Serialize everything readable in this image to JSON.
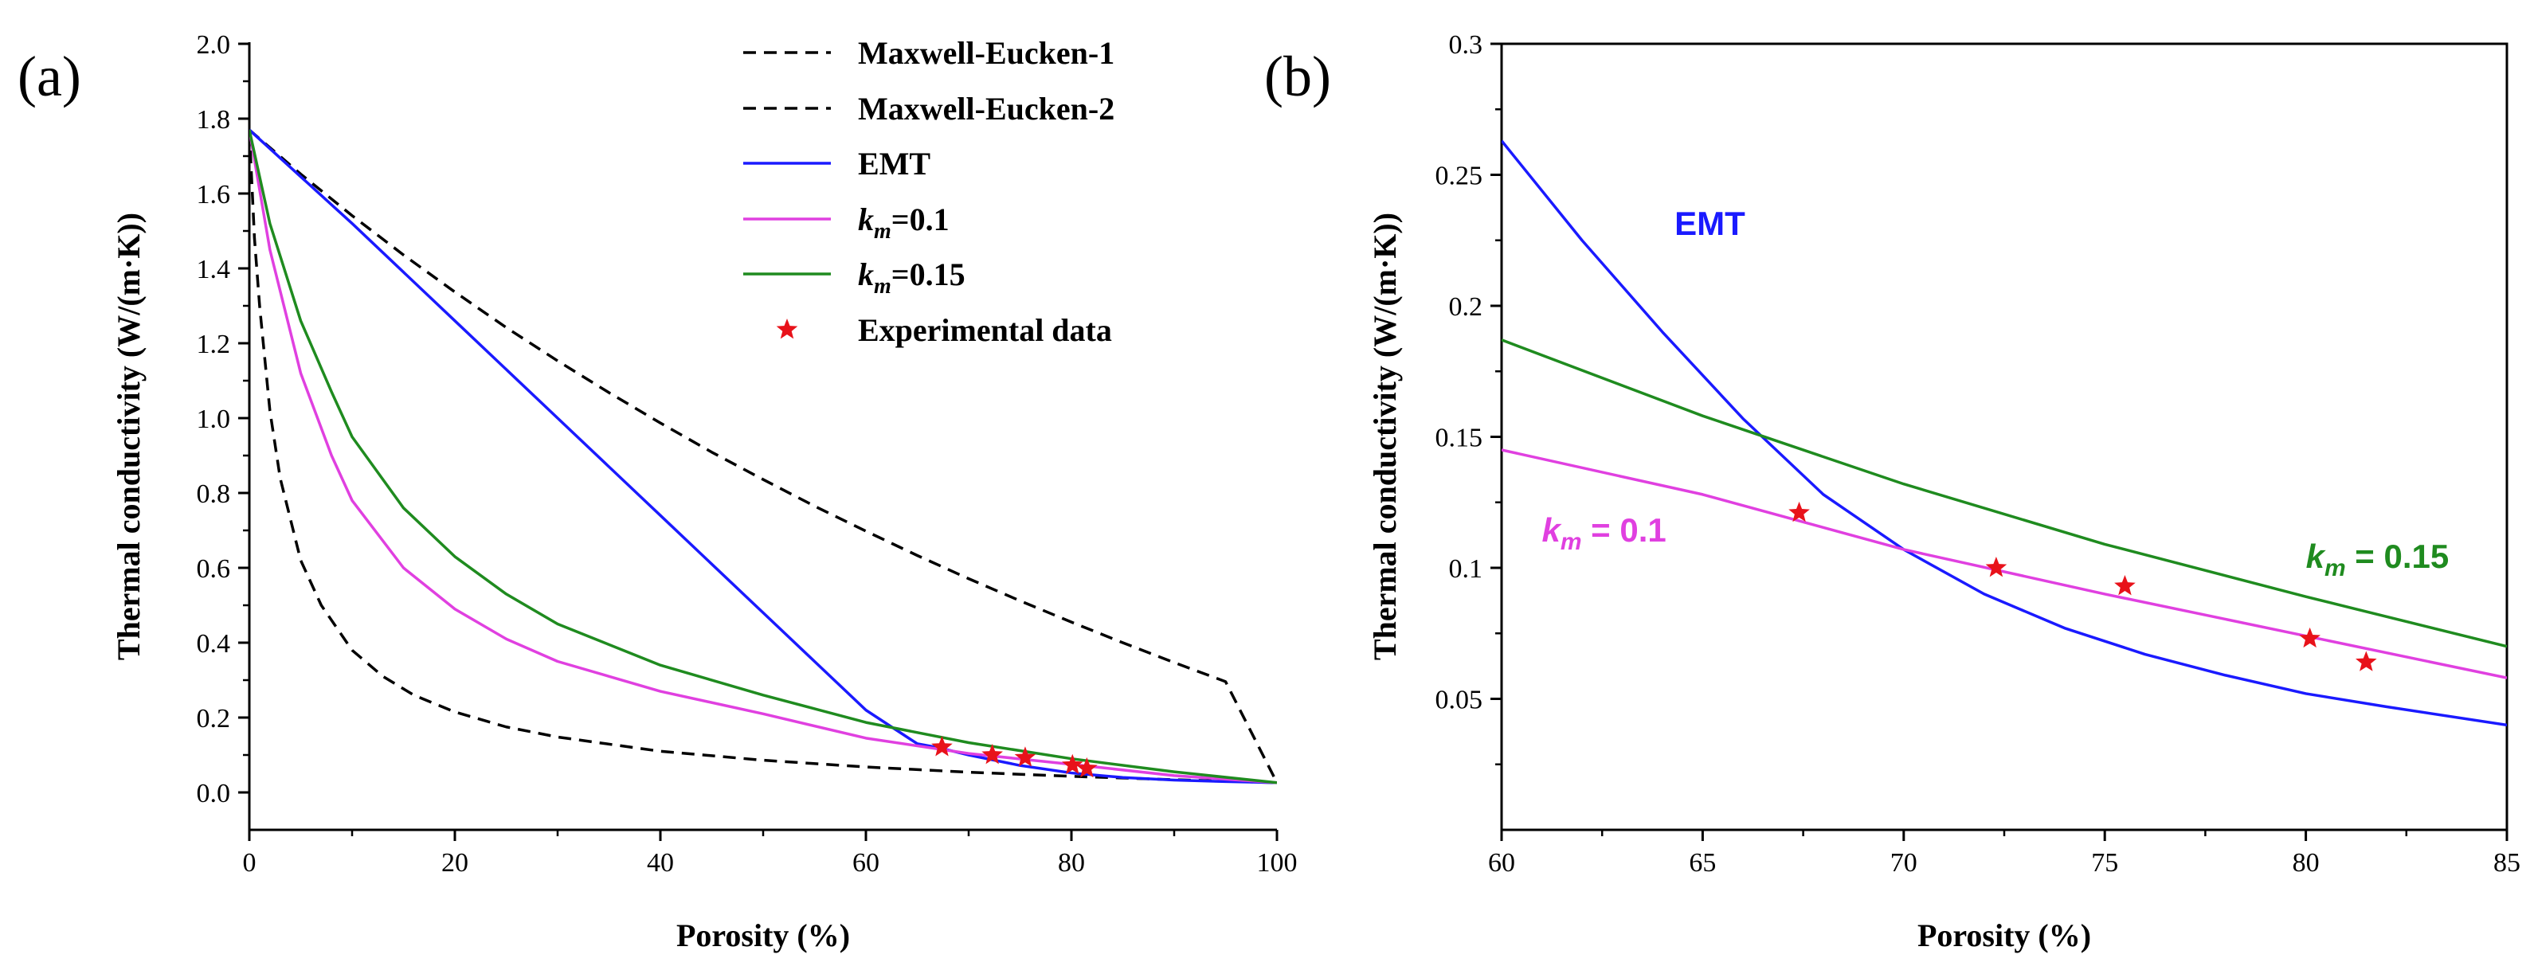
{
  "chart_data": [
    {
      "panel_label": "(a)",
      "type": "line",
      "xlabel": "Porosity (%)",
      "ylabel": "Thermal conductivity (W/(m·K))",
      "xlim": [
        0,
        100
      ],
      "ylim": [
        -0.1,
        2.0
      ],
      "xticks": [
        0,
        20,
        40,
        60,
        80,
        100
      ],
      "xtick_labels": [
        "0",
        "20",
        "40",
        "60",
        "80",
        "100"
      ],
      "yticks": [
        0.0,
        0.2,
        0.4,
        0.6,
        0.8,
        1.0,
        1.2,
        1.4,
        1.6,
        1.8,
        2.0
      ],
      "ytick_labels": [
        "0.0",
        "0.2",
        "0.4",
        "0.6",
        "0.8",
        "1.0",
        "1.2",
        "1.4",
        "1.6",
        "1.8",
        "2.0"
      ],
      "grid": false,
      "legend_position": "top-right",
      "series": [
        {
          "name": "Maxwell-Eucken-1",
          "style": "dashed",
          "color": "#000000",
          "x": [
            0,
            5,
            10,
            15,
            20,
            25,
            30,
            35,
            40,
            45,
            50,
            55,
            60,
            65,
            70,
            75,
            80,
            85,
            90,
            95,
            100
          ],
          "y": [
            1.77,
            1.652,
            1.541,
            1.436,
            1.337,
            1.242,
            1.153,
            1.068,
            0.987,
            0.909,
            0.836,
            0.765,
            0.698,
            0.633,
            0.571,
            0.512,
            0.455,
            0.4,
            0.347,
            0.296,
            0.026
          ]
        },
        {
          "name": "Maxwell-Eucken-2",
          "style": "dashed",
          "color": "#000000",
          "x": [
            0,
            0.5,
            1,
            2,
            3,
            5,
            7,
            10,
            13,
            16,
            20,
            25,
            30,
            40,
            50,
            60,
            70,
            80,
            90,
            100
          ],
          "y": [
            1.77,
            1.48,
            1.3,
            1.02,
            0.84,
            0.62,
            0.5,
            0.38,
            0.31,
            0.26,
            0.215,
            0.175,
            0.148,
            0.11,
            0.086,
            0.068,
            0.054,
            0.043,
            0.034,
            0.026
          ]
        },
        {
          "name": "EMT",
          "style": "solid",
          "color": "#1a1aff",
          "x": [
            0,
            10,
            20,
            30,
            40,
            50,
            55,
            60,
            65,
            67,
            70,
            75,
            80,
            85,
            90,
            95,
            100
          ],
          "y": [
            1.77,
            1.52,
            1.26,
            1.0,
            0.74,
            0.48,
            0.35,
            0.22,
            0.13,
            0.12,
            0.1,
            0.072,
            0.052,
            0.04,
            0.033,
            0.029,
            0.026
          ]
        },
        {
          "name": "k_m=0.1",
          "style": "solid",
          "color": "#e040e0",
          "x": [
            0,
            2,
            5,
            8,
            10,
            15,
            20,
            25,
            30,
            40,
            50,
            60,
            70,
            80,
            90,
            100
          ],
          "y": [
            1.77,
            1.45,
            1.12,
            0.9,
            0.78,
            0.6,
            0.49,
            0.41,
            0.35,
            0.27,
            0.21,
            0.145,
            0.104,
            0.075,
            0.045,
            0.026
          ]
        },
        {
          "name": "k_m=0.15",
          "style": "solid",
          "color": "#1f8b1f",
          "x": [
            0,
            2,
            5,
            8,
            10,
            15,
            20,
            25,
            30,
            40,
            50,
            60,
            70,
            80,
            90,
            100
          ],
          "y": [
            1.77,
            1.52,
            1.26,
            1.07,
            0.95,
            0.76,
            0.63,
            0.53,
            0.45,
            0.34,
            0.26,
            0.187,
            0.133,
            0.09,
            0.055,
            0.026
          ]
        }
      ],
      "points": {
        "name": "Experimental data",
        "color": "#e8121a",
        "x": [
          67.4,
          72.3,
          75.5,
          80.1,
          81.5
        ],
        "y": [
          0.121,
          0.1,
          0.093,
          0.073,
          0.064
        ]
      },
      "legend": [
        "Maxwell-Eucken-1",
        "Maxwell-Eucken-2",
        "EMT",
        "k_m=0.1",
        "k_m=0.15",
        "Experimental data"
      ]
    },
    {
      "panel_label": "(b)",
      "type": "line",
      "xlabel": "Porosity (%)",
      "ylabel": "Thermal conductivity (W/(m·K))",
      "xlim": [
        60,
        85
      ],
      "ylim": [
        0.0,
        0.3
      ],
      "xticks": [
        60,
        65,
        70,
        75,
        80,
        85
      ],
      "xtick_labels": [
        "60",
        "65",
        "70",
        "75",
        "80",
        "85"
      ],
      "yticks": [
        0.05,
        0.1,
        0.15,
        0.2,
        0.25,
        0.3
      ],
      "ytick_labels": [
        "0.05",
        "0.1",
        "0.15",
        "0.2",
        "0.25",
        "0.3"
      ],
      "grid": false,
      "series": [
        {
          "name": "EMT",
          "style": "solid",
          "color": "#1a1aff",
          "x": [
            60,
            62,
            64,
            66,
            68,
            70,
            72,
            74,
            76,
            78,
            80,
            82,
            85
          ],
          "y": [
            0.263,
            0.225,
            0.19,
            0.157,
            0.128,
            0.107,
            0.09,
            0.077,
            0.067,
            0.059,
            0.052,
            0.047,
            0.04
          ]
        },
        {
          "name": "k_m=0.1",
          "style": "solid",
          "color": "#e040e0",
          "x": [
            60,
            65,
            70,
            75,
            80,
            85
          ],
          "y": [
            0.145,
            0.128,
            0.107,
            0.09,
            0.074,
            0.058
          ]
        },
        {
          "name": "k_m=0.15",
          "style": "solid",
          "color": "#1f8b1f",
          "x": [
            60,
            65,
            70,
            75,
            80,
            85
          ],
          "y": [
            0.187,
            0.158,
            0.132,
            0.109,
            0.089,
            0.07
          ]
        }
      ],
      "points": {
        "name": "Experimental data",
        "color": "#e8121a",
        "x": [
          67.4,
          72.3,
          75.5,
          80.1,
          81.5
        ],
        "y": [
          0.121,
          0.1,
          0.093,
          0.073,
          0.064
        ]
      },
      "annotations": [
        {
          "text": "EMT",
          "color": "#1a1aff",
          "x": 64.3,
          "y": 0.227
        },
        {
          "text_main": "k",
          "text_sub": "m",
          "text_rest": " = 0.1",
          "color": "#e040e0",
          "x": 61.0,
          "y": 0.11
        },
        {
          "text_main": "k",
          "text_sub": "m",
          "text_rest": " = 0.15",
          "color": "#1f8b1f",
          "x": 80.0,
          "y": 0.1
        }
      ]
    }
  ]
}
